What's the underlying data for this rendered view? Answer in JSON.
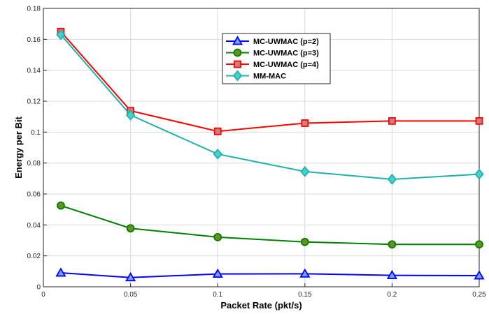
{
  "chart_data": {
    "type": "line",
    "title": "",
    "xlabel": "Packet Rate (pkt/s)",
    "ylabel": "Energy per Bit",
    "xlim": [
      0,
      0.25
    ],
    "ylim": [
      0,
      0.18
    ],
    "xticks": [
      "0",
      "0.05",
      "0.1",
      "0.15",
      "0.2",
      "0.25"
    ],
    "yticks": [
      "0",
      "0.02",
      "0.04",
      "0.06",
      "0.08",
      "0.1",
      "0.12",
      "0.14",
      "0.16",
      "0.18"
    ],
    "x": [
      0.01,
      0.05,
      0.1,
      0.15,
      0.2,
      0.25
    ],
    "grid": true,
    "legend_position": "top-center",
    "series": [
      {
        "name": "MC-UWMAC (p=2)",
        "values": [
          0.009,
          0.006,
          0.0083,
          0.0084,
          0.0074,
          0.0072
        ],
        "color": "#0000ff",
        "fill": "#7b9ff2",
        "marker": "triangle"
      },
      {
        "name": "MC-UWMAC (p=3)",
        "values": [
          0.0525,
          0.0378,
          0.0321,
          0.029,
          0.0274,
          0.0274
        ],
        "color": "#008000",
        "fill": "#6b8e23",
        "marker": "circle"
      },
      {
        "name": "MC-UWMAC (p=4)",
        "values": [
          0.165,
          0.1138,
          0.1005,
          0.1058,
          0.1072,
          0.1072
        ],
        "color": "#ff0000",
        "fill": "#cd7f7f",
        "marker": "square"
      },
      {
        "name": "MM-MAC",
        "values": [
          0.163,
          0.111,
          0.0858,
          0.0745,
          0.0695,
          0.0728
        ],
        "color": "#20b2aa",
        "fill": "#48d1cc",
        "marker": "diamond"
      }
    ]
  }
}
